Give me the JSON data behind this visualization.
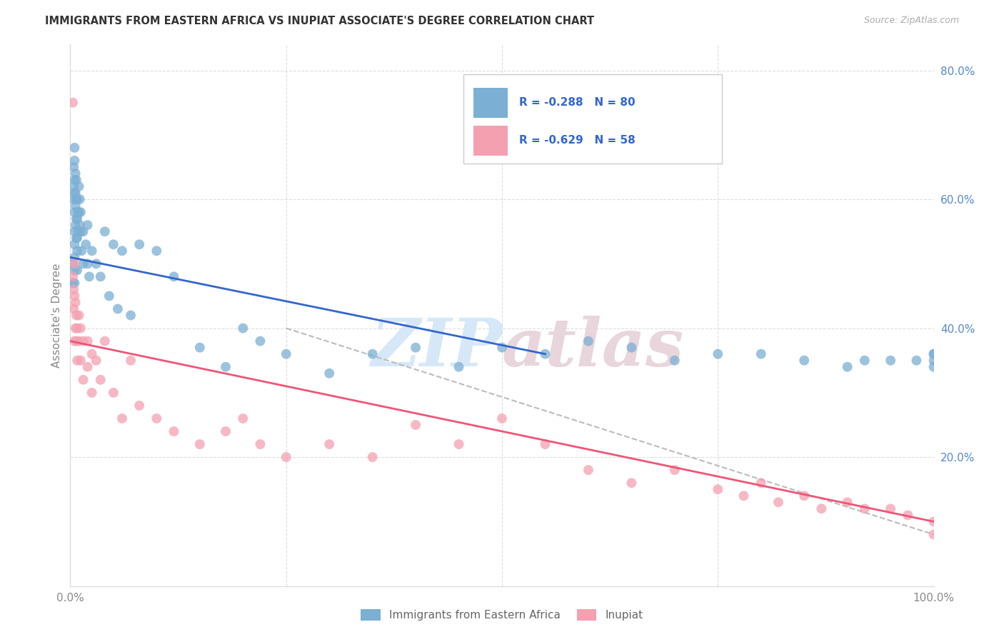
{
  "title": "IMMIGRANTS FROM EASTERN AFRICA VS INUPIAT ASSOCIATE'S DEGREE CORRELATION CHART",
  "source": "Source: ZipAtlas.com",
  "ylabel": "Associate's Degree",
  "legend_blue_r": "R = -0.288",
  "legend_blue_n": "N = 80",
  "legend_pink_r": "R = -0.629",
  "legend_pink_n": "N = 58",
  "blue_color": "#7BAFD4",
  "pink_color": "#F4A0B0",
  "trend_blue": "#3366CC",
  "trend_pink": "#EE5577",
  "trend_gray": "#BBBBBB",
  "watermark_zip": "ZIP",
  "watermark_atlas": "atlas",
  "blue_x": [
    0.3,
    0.3,
    0.4,
    0.4,
    0.4,
    0.5,
    0.5,
    0.5,
    0.5,
    0.5,
    0.5,
    0.5,
    0.5,
    0.5,
    0.5,
    0.6,
    0.6,
    0.6,
    0.6,
    0.7,
    0.7,
    0.7,
    0.7,
    0.8,
    0.8,
    0.8,
    0.8,
    0.8,
    0.9,
    0.9,
    1.0,
    1.0,
    1.1,
    1.1,
    1.2,
    1.2,
    1.3,
    1.5,
    1.5,
    1.8,
    2.0,
    2.0,
    2.2,
    2.5,
    3.0,
    3.5,
    4.0,
    4.5,
    5.0,
    5.5,
    6.0,
    7.0,
    8.0,
    10.0,
    12.0,
    15.0,
    18.0,
    20.0,
    22.0,
    25.0,
    30.0,
    35.0,
    40.0,
    45.0,
    50.0,
    55.0,
    60.0,
    65.0,
    70.0,
    75.0,
    80.0,
    85.0,
    90.0,
    92.0,
    95.0,
    98.0,
    100.0,
    100.0,
    100.0,
    100.0
  ],
  "blue_y": [
    50,
    47,
    65,
    62,
    60,
    68,
    66,
    63,
    61,
    58,
    55,
    53,
    51,
    49,
    47,
    64,
    61,
    59,
    56,
    63,
    60,
    57,
    54,
    60,
    57,
    54,
    52,
    49,
    58,
    55,
    62,
    58,
    60,
    56,
    58,
    55,
    52,
    55,
    50,
    53,
    56,
    50,
    48,
    52,
    50,
    48,
    55,
    45,
    53,
    43,
    52,
    42,
    53,
    52,
    48,
    37,
    34,
    40,
    38,
    36,
    33,
    36,
    37,
    34,
    37,
    36,
    38,
    37,
    35,
    36,
    36,
    35,
    34,
    35,
    35,
    35,
    36,
    36,
    35,
    34
  ],
  "pink_x": [
    0.3,
    0.3,
    0.4,
    0.4,
    0.5,
    0.5,
    0.5,
    0.6,
    0.6,
    0.7,
    0.7,
    0.8,
    0.8,
    1.0,
    1.0,
    1.2,
    1.2,
    1.5,
    1.5,
    2.0,
    2.0,
    2.5,
    2.5,
    3.0,
    3.5,
    4.0,
    5.0,
    6.0,
    7.0,
    8.0,
    10.0,
    12.0,
    15.0,
    18.0,
    20.0,
    22.0,
    25.0,
    30.0,
    35.0,
    40.0,
    45.0,
    50.0,
    55.0,
    60.0,
    65.0,
    70.0,
    75.0,
    78.0,
    80.0,
    82.0,
    85.0,
    87.0,
    90.0,
    92.0,
    95.0,
    97.0,
    100.0,
    100.0
  ],
  "pink_y": [
    75,
    48,
    46,
    43,
    50,
    45,
    38,
    44,
    40,
    42,
    38,
    40,
    35,
    42,
    38,
    40,
    35,
    38,
    32,
    38,
    34,
    36,
    30,
    35,
    32,
    38,
    30,
    26,
    35,
    28,
    26,
    24,
    22,
    24,
    26,
    22,
    20,
    22,
    20,
    25,
    22,
    26,
    22,
    18,
    16,
    18,
    15,
    14,
    16,
    13,
    14,
    12,
    13,
    12,
    12,
    11,
    10,
    8
  ],
  "blue_trend_x": [
    0,
    55
  ],
  "blue_trend_y": [
    51,
    36
  ],
  "pink_trend_x": [
    0,
    100
  ],
  "pink_trend_y": [
    38,
    10
  ],
  "gray_trend_x": [
    25,
    100
  ],
  "gray_trend_y": [
    40,
    8
  ],
  "xlim": [
    0,
    100
  ],
  "ylim": [
    0,
    84
  ],
  "yticks": [
    20,
    40,
    60,
    80
  ],
  "ytick_labels": [
    "20.0%",
    "40.0%",
    "60.0%",
    "80.0%"
  ],
  "xtick_labels_show": [
    "0.0%",
    "100.0%"
  ],
  "grid_color": "#DDDDDD"
}
